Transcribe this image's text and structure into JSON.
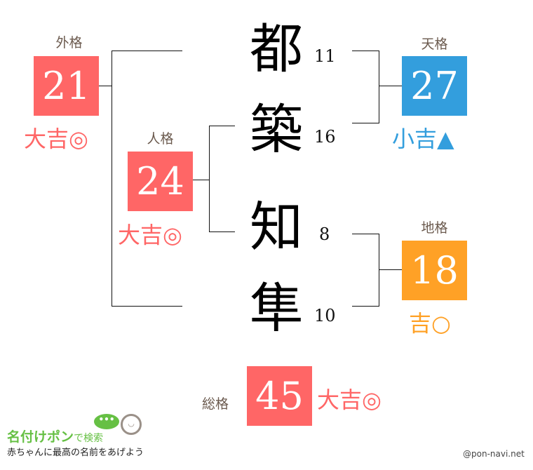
{
  "colors": {
    "red": "#ff6666",
    "blue": "#339edd",
    "orange": "#ffa126",
    "label": "#6b5a4e"
  },
  "name_chars": [
    {
      "char": "都",
      "strokes": "11"
    },
    {
      "char": "築",
      "strokes": "16"
    },
    {
      "char": "知",
      "strokes": "8"
    },
    {
      "char": "隼",
      "strokes": "10"
    }
  ],
  "gaikaku": {
    "label": "外格",
    "value": "21",
    "fortune": "大吉◎"
  },
  "jinkaku": {
    "label": "人格",
    "value": "24",
    "fortune": "大吉◎"
  },
  "tenkaku": {
    "label": "天格",
    "value": "27",
    "fortune": "小吉▲"
  },
  "chikaku": {
    "label": "地格",
    "value": "18",
    "fortune": "吉○"
  },
  "soukaku": {
    "label": "総格",
    "value": "45",
    "fortune": "大吉◎"
  },
  "footer": {
    "logo_main": "名付けポン",
    "logo_sub": "で検索",
    "tagline": "赤ちゃんに最高の名前をあげよう",
    "credit": "@pon-navi.net"
  }
}
